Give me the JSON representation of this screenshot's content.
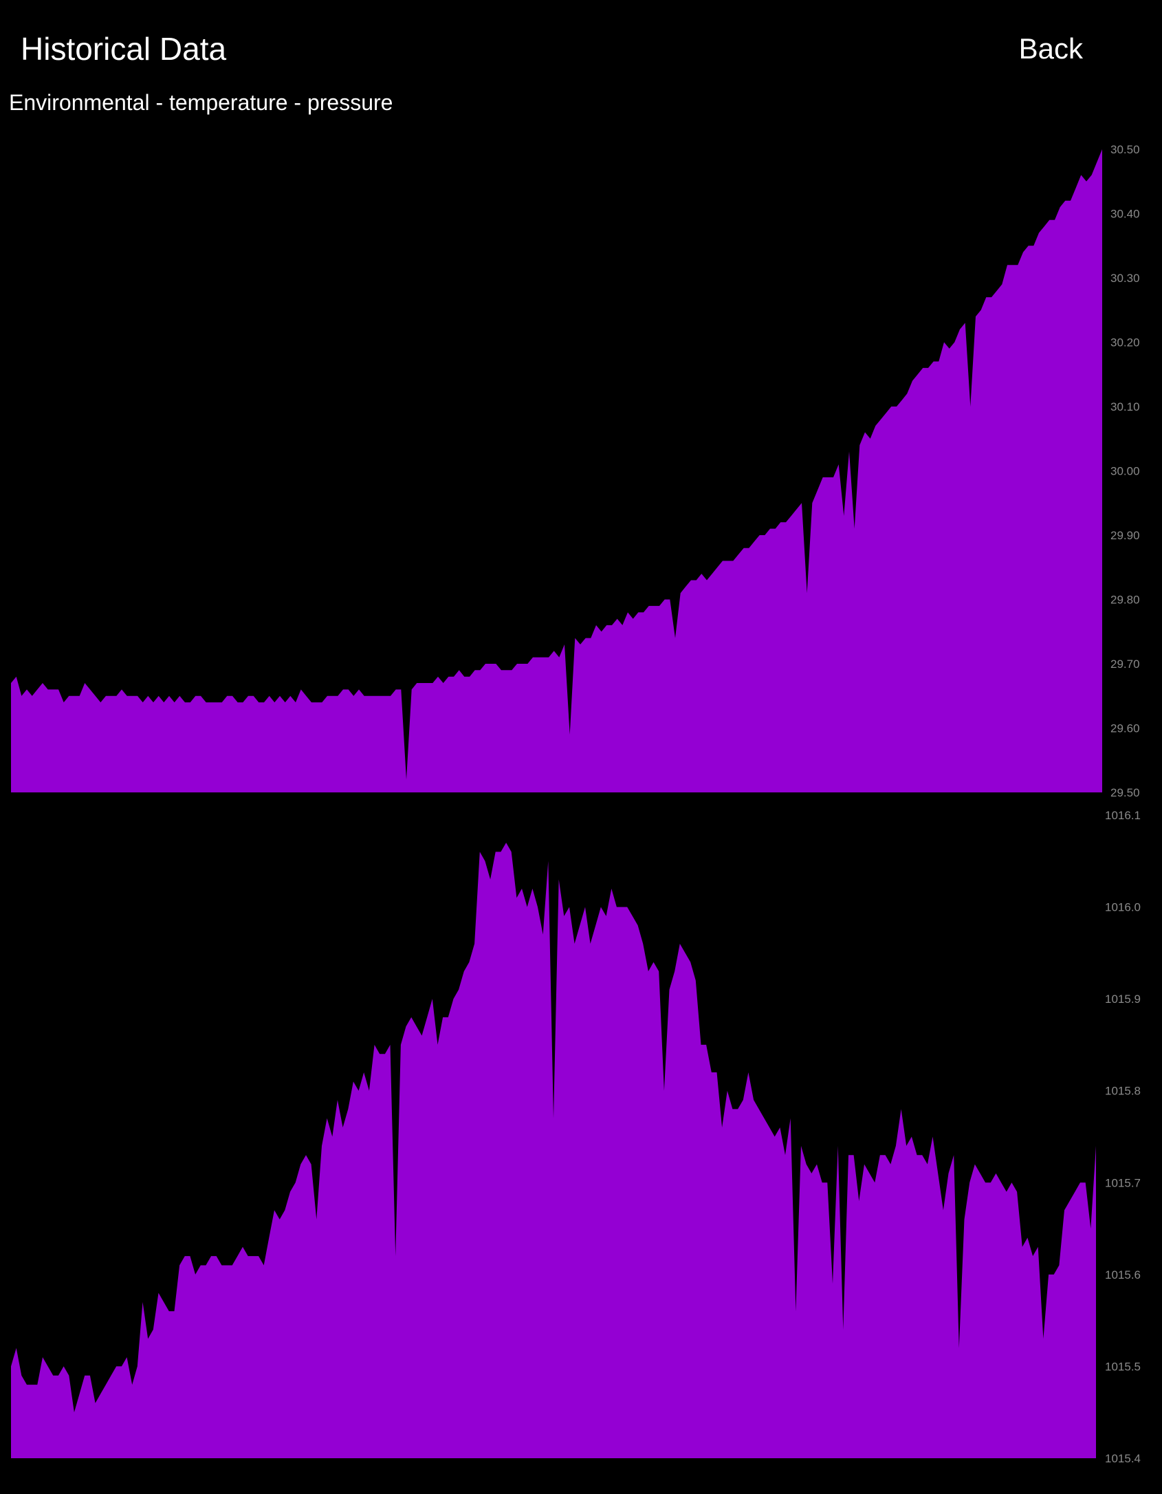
{
  "header": {
    "title": "Historical Data",
    "back_label": "Back"
  },
  "subtitle": "Environmental - temperature - pressure",
  "colors": {
    "background": "#000000",
    "fill": "#9400d3",
    "tick_text": "#8a8a8a",
    "text": "#ffffff"
  },
  "chart_data": [
    {
      "type": "area",
      "title": "",
      "ylim": [
        29.5,
        30.5
      ],
      "y_axis_position": "right",
      "yticks": [
        "29.50",
        "29.60",
        "29.70",
        "29.80",
        "29.90",
        "30.00",
        "30.10",
        "30.20",
        "30.30",
        "30.40",
        "30.50"
      ],
      "values": [
        29.67,
        29.68,
        29.65,
        29.66,
        29.65,
        29.66,
        29.67,
        29.66,
        29.66,
        29.66,
        29.64,
        29.65,
        29.65,
        29.65,
        29.67,
        29.66,
        29.65,
        29.64,
        29.65,
        29.65,
        29.65,
        29.66,
        29.65,
        29.65,
        29.65,
        29.64,
        29.65,
        29.64,
        29.65,
        29.64,
        29.65,
        29.64,
        29.65,
        29.64,
        29.64,
        29.65,
        29.65,
        29.64,
        29.64,
        29.64,
        29.64,
        29.65,
        29.65,
        29.64,
        29.64,
        29.65,
        29.65,
        29.64,
        29.64,
        29.65,
        29.64,
        29.65,
        29.64,
        29.65,
        29.64,
        29.66,
        29.65,
        29.64,
        29.64,
        29.64,
        29.65,
        29.65,
        29.65,
        29.66,
        29.66,
        29.65,
        29.66,
        29.65,
        29.65,
        29.65,
        29.65,
        29.65,
        29.65,
        29.66,
        29.66,
        29.52,
        29.66,
        29.67,
        29.67,
        29.67,
        29.67,
        29.68,
        29.67,
        29.68,
        29.68,
        29.69,
        29.68,
        29.68,
        29.69,
        29.69,
        29.7,
        29.7,
        29.7,
        29.69,
        29.69,
        29.69,
        29.7,
        29.7,
        29.7,
        29.71,
        29.71,
        29.71,
        29.71,
        29.72,
        29.71,
        29.73,
        29.59,
        29.74,
        29.73,
        29.74,
        29.74,
        29.76,
        29.75,
        29.76,
        29.76,
        29.77,
        29.76,
        29.78,
        29.77,
        29.78,
        29.78,
        29.79,
        29.79,
        29.79,
        29.8,
        29.8,
        29.74,
        29.81,
        29.82,
        29.83,
        29.83,
        29.84,
        29.83,
        29.84,
        29.85,
        29.86,
        29.86,
        29.86,
        29.87,
        29.88,
        29.88,
        29.89,
        29.9,
        29.9,
        29.91,
        29.91,
        29.92,
        29.92,
        29.93,
        29.94,
        29.95,
        29.81,
        29.95,
        29.97,
        29.99,
        29.99,
        29.99,
        30.01,
        29.93,
        30.03,
        29.91,
        30.04,
        30.06,
        30.05,
        30.07,
        30.08,
        30.09,
        30.1,
        30.1,
        30.11,
        30.12,
        30.14,
        30.15,
        30.16,
        30.16,
        30.17,
        30.17,
        30.2,
        30.19,
        30.2,
        30.22,
        30.23,
        30.1,
        30.24,
        30.25,
        30.27,
        30.27,
        30.28,
        30.29,
        30.32,
        30.32,
        30.32,
        30.34,
        30.35,
        30.35,
        30.37,
        30.38,
        30.39,
        30.39,
        30.41,
        30.42,
        30.42,
        30.44,
        30.46,
        30.45,
        30.46,
        30.48,
        30.5
      ]
    },
    {
      "type": "area",
      "title": "",
      "ylim": [
        1015.4,
        1016.1
      ],
      "y_axis_position": "right",
      "yticks": [
        "1015.4",
        "1015.5",
        "1015.6",
        "1015.7",
        "1015.8",
        "1015.9",
        "1016.0",
        "1016.1"
      ],
      "values": [
        1015.5,
        1015.52,
        1015.49,
        1015.48,
        1015.48,
        1015.48,
        1015.51,
        1015.5,
        1015.49,
        1015.49,
        1015.5,
        1015.49,
        1015.45,
        1015.47,
        1015.49,
        1015.49,
        1015.46,
        1015.47,
        1015.48,
        1015.49,
        1015.5,
        1015.5,
        1015.51,
        1015.48,
        1015.5,
        1015.57,
        1015.53,
        1015.54,
        1015.58,
        1015.57,
        1015.56,
        1015.56,
        1015.61,
        1015.62,
        1015.62,
        1015.6,
        1015.61,
        1015.61,
        1015.62,
        1015.62,
        1015.61,
        1015.61,
        1015.61,
        1015.62,
        1015.63,
        1015.62,
        1015.62,
        1015.62,
        1015.61,
        1015.64,
        1015.67,
        1015.66,
        1015.67,
        1015.69,
        1015.7,
        1015.72,
        1015.73,
        1015.72,
        1015.66,
        1015.74,
        1015.77,
        1015.75,
        1015.79,
        1015.76,
        1015.78,
        1015.81,
        1015.8,
        1015.82,
        1015.8,
        1015.85,
        1015.84,
        1015.84,
        1015.85,
        1015.62,
        1015.85,
        1015.87,
        1015.88,
        1015.87,
        1015.86,
        1015.88,
        1015.9,
        1015.85,
        1015.88,
        1015.88,
        1015.9,
        1015.91,
        1015.93,
        1015.94,
        1015.96,
        1016.06,
        1016.05,
        1016.03,
        1016.06,
        1016.06,
        1016.07,
        1016.06,
        1016.01,
        1016.02,
        1016.0,
        1016.02,
        1016.0,
        1015.97,
        1016.05,
        1015.77,
        1016.03,
        1015.99,
        1016.0,
        1015.96,
        1015.98,
        1016.0,
        1015.96,
        1015.98,
        1016.0,
        1015.99,
        1016.02,
        1016.0,
        1016.0,
        1016.0,
        1015.99,
        1015.98,
        1015.96,
        1015.93,
        1015.94,
        1015.93,
        1015.8,
        1015.91,
        1015.93,
        1015.96,
        1015.95,
        1015.94,
        1015.92,
        1015.85,
        1015.85,
        1015.82,
        1015.82,
        1015.76,
        1015.8,
        1015.78,
        1015.78,
        1015.79,
        1015.82,
        1015.79,
        1015.78,
        1015.77,
        1015.76,
        1015.75,
        1015.76,
        1015.73,
        1015.77,
        1015.56,
        1015.74,
        1015.72,
        1015.71,
        1015.72,
        1015.7,
        1015.7,
        1015.59,
        1015.74,
        1015.54,
        1015.73,
        1015.73,
        1015.68,
        1015.72,
        1015.71,
        1015.7,
        1015.73,
        1015.73,
        1015.72,
        1015.74,
        1015.78,
        1015.74,
        1015.75,
        1015.73,
        1015.73,
        1015.72,
        1015.75,
        1015.71,
        1015.67,
        1015.71,
        1015.73,
        1015.52,
        1015.66,
        1015.7,
        1015.72,
        1015.71,
        1015.7,
        1015.7,
        1015.71,
        1015.7,
        1015.69,
        1015.7,
        1015.69,
        1015.63,
        1015.64,
        1015.62,
        1015.63,
        1015.53,
        1015.6,
        1015.6,
        1015.61,
        1015.67,
        1015.68,
        1015.69,
        1015.7,
        1015.7,
        1015.65,
        1015.74
      ]
    }
  ]
}
